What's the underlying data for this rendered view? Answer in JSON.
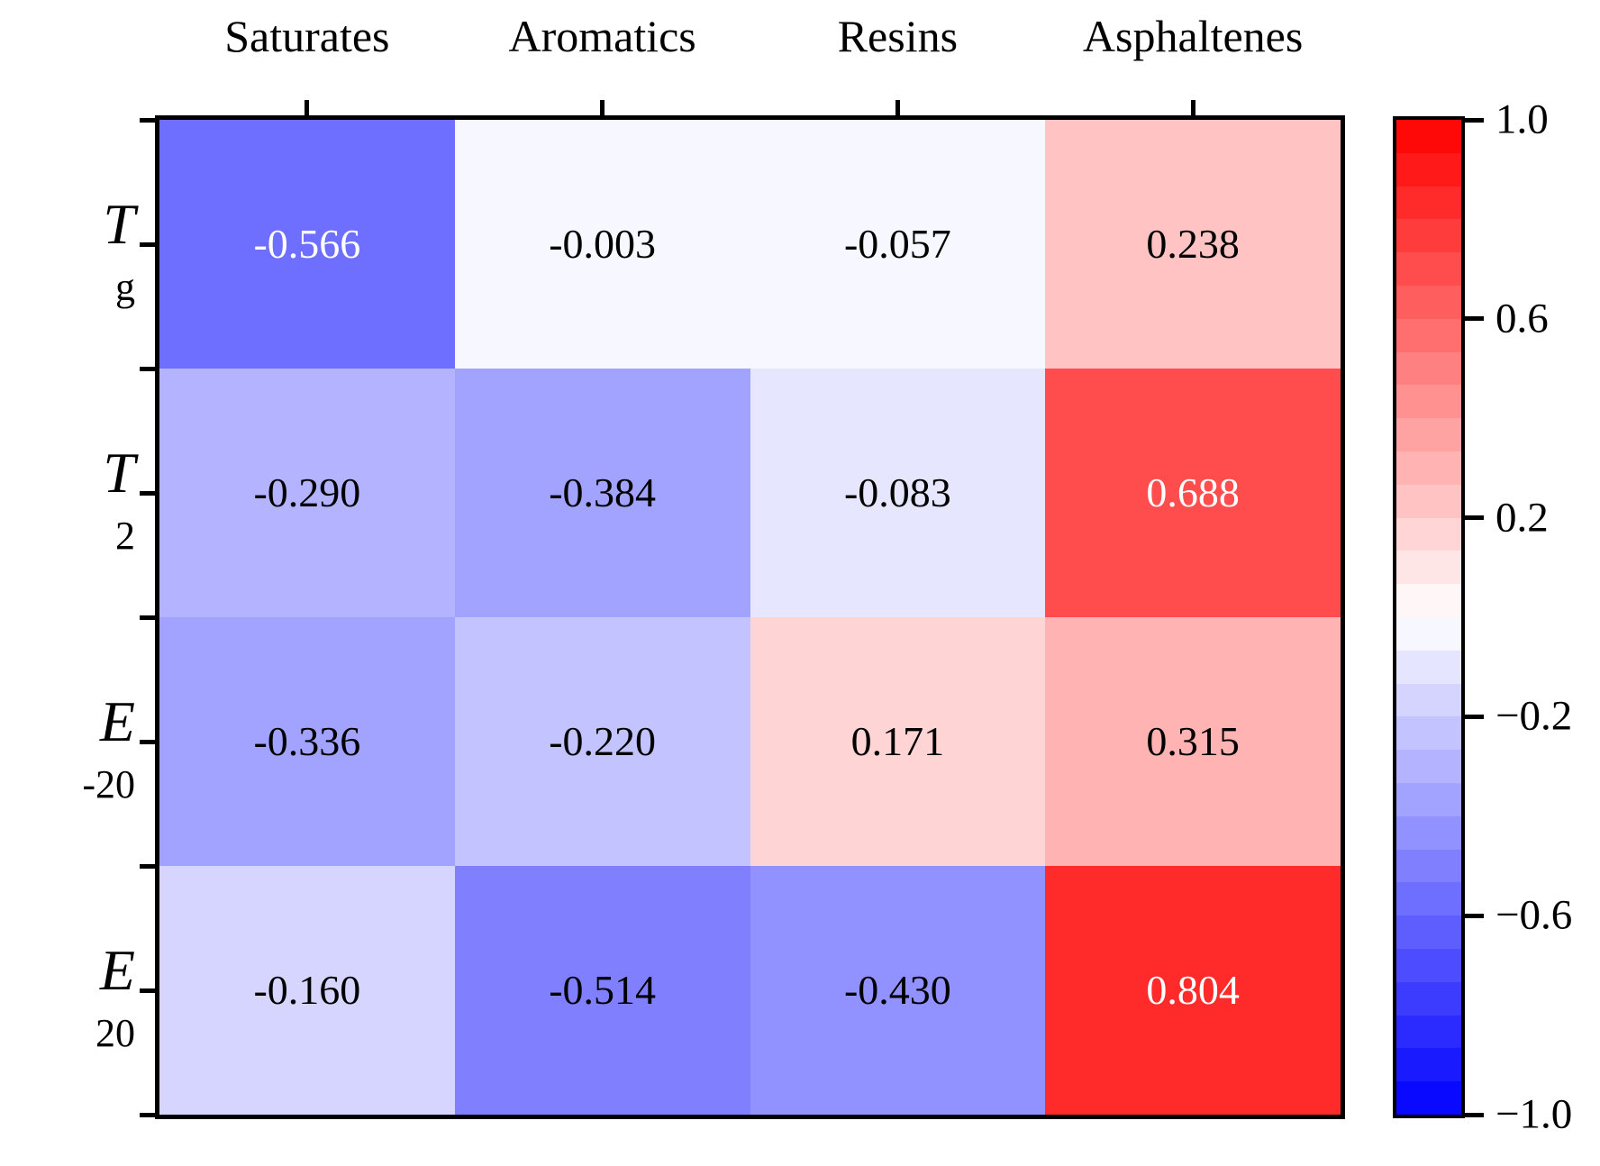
{
  "figure": {
    "background": "#ffffff",
    "text_color": "#000000"
  },
  "chart_data": {
    "type": "heatmap",
    "title": "",
    "columns": [
      "Saturates",
      "Aromatics",
      "Resins",
      "Asphaltenes"
    ],
    "rows": [
      {
        "base": "T",
        "sub": "g"
      },
      {
        "base": "T",
        "sub": "2"
      },
      {
        "base": "E",
        "sub": "-20"
      },
      {
        "base": "E",
        "sub": "20"
      }
    ],
    "values": [
      [
        -0.566,
        -0.003,
        -0.057,
        0.238
      ],
      [
        -0.29,
        -0.384,
        -0.083,
        0.688
      ],
      [
        -0.336,
        -0.22,
        0.171,
        0.315
      ],
      [
        -0.16,
        -0.514,
        -0.43,
        0.804
      ]
    ],
    "value_decimals": 3,
    "colormap": {
      "name": "bwr",
      "negative_end": "#0000FF",
      "midpoint": "#FFFFFF",
      "positive_end": "#FF0000",
      "levels": 30,
      "vmin": -1.0,
      "vmax": 1.0
    },
    "cell_text_colors": {
      "dark_bg": "#FFFFFF",
      "light_bg": "#000000"
    },
    "colorbar": {
      "tick_labels": [
        "1.0",
        "0.6",
        "0.2",
        "−0.2",
        "−0.6",
        "−1.0"
      ],
      "tick_values": [
        1.0,
        0.6,
        0.2,
        -0.2,
        -0.6,
        -1.0
      ],
      "position": "right"
    },
    "axes": {
      "x_tick_style": "column centers, outward, top side",
      "y_tick_style": "row centers and boundaries, outward, left side",
      "grid": false
    }
  }
}
